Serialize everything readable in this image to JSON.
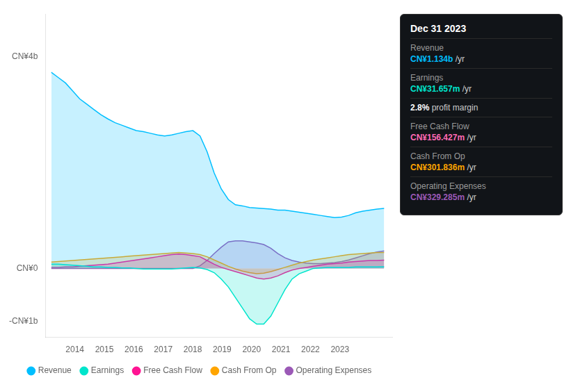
{
  "chart_data": {
    "type": "area",
    "x": [
      2013.2,
      2013.440426,
      2013.680851,
      2013.921277,
      2014.161702,
      2014.402128,
      2014.642553,
      2014.882979,
      2015.123404,
      2015.36383,
      2015.604255,
      2015.844681,
      2016.085106,
      2016.325532,
      2016.565957,
      2016.806383,
      2017.046809,
      2017.287234,
      2017.52766,
      2017.768085,
      2018.008511,
      2018.248936,
      2018.489362,
      2018.729787,
      2018.970213,
      2019.210638,
      2019.451064,
      2019.691489,
      2019.931915,
      2020.17234,
      2020.412766,
      2020.653191,
      2020.893617,
      2021.134043,
      2021.374468,
      2021.614894,
      2021.855319,
      2022.095745,
      2022.33617,
      2022.576596,
      2022.817021,
      2023.057447,
      2023.297872,
      2023.538298,
      2023.778723,
      2024.019149,
      2024.259574,
      2024.5
    ],
    "series": [
      {
        "name": "Revenue",
        "color": "#00bfff",
        "values": [
          3700000000.0,
          3600000000.0,
          3500000000.0,
          3350000000.0,
          3200000000.0,
          3100000000.0,
          3000000000.0,
          2900000000.0,
          2820000000.0,
          2750000000.0,
          2700000000.0,
          2650000000.0,
          2600000000.0,
          2580000000.0,
          2550000000.0,
          2520000000.0,
          2500000000.0,
          2520000000.0,
          2550000000.0,
          2580000000.0,
          2600000000.0,
          2500000000.0,
          2200000000.0,
          1800000000.0,
          1500000000.0,
          1300000000.0,
          1200000000.0,
          1180000000.0,
          1150000000.0,
          1140000000.0,
          1130000000.0,
          1120000000.0,
          1100000000.0,
          1100000000.0,
          1080000000.0,
          1060000000.0,
          1040000000.0,
          1020000000.0,
          1000000000.0,
          980000000.0,
          960000000.0,
          970000000.0,
          1000000000.0,
          1050000000.0,
          1080000000.0,
          1100000000.0,
          1120000000.0,
          1134000000.0
        ]
      },
      {
        "name": "Earnings",
        "color": "#00e5cc",
        "values": [
          80000000.0,
          80000000.0,
          70000000.0,
          60000000.0,
          50000000.0,
          40000000.0,
          30000000.0,
          30000000.0,
          20000000.0,
          20000000.0,
          10000000.0,
          10000000.0,
          0.0,
          -10000000.0,
          -10000000.0,
          -10000000.0,
          -10000000.0,
          -10000000.0,
          0.0,
          10000000.0,
          20000000.0,
          10000000.0,
          -20000000.0,
          -80000000.0,
          -200000000.0,
          -350000000.0,
          -550000000.0,
          -750000000.0,
          -950000000.0,
          -1050000000.0,
          -1050000000.0,
          -900000000.0,
          -650000000.0,
          -400000000.0,
          -200000000.0,
          -100000000.0,
          -50000000.0,
          0.0,
          10000000.0,
          20000000.0,
          20000000.0,
          20000000.0,
          20000000.0,
          30000000.0,
          30000000.0,
          30000000.0,
          30000000.0,
          31657000.0
        ]
      },
      {
        "name": "Free Cash Flow",
        "color": "#ff1493",
        "values": [
          20000000.0,
          20000000.0,
          30000000.0,
          30000000.0,
          40000000.0,
          50000000.0,
          60000000.0,
          70000000.0,
          80000000.0,
          100000000.0,
          120000000.0,
          140000000.0,
          160000000.0,
          180000000.0,
          200000000.0,
          220000000.0,
          240000000.0,
          260000000.0,
          270000000.0,
          260000000.0,
          240000000.0,
          220000000.0,
          150000000.0,
          80000000.0,
          20000000.0,
          -20000000.0,
          -60000000.0,
          -100000000.0,
          -140000000.0,
          -180000000.0,
          -200000000.0,
          -180000000.0,
          -140000000.0,
          -80000000.0,
          -30000000.0,
          0.0,
          20000000.0,
          40000000.0,
          60000000.0,
          80000000.0,
          90000000.0,
          100000000.0,
          120000000.0,
          130000000.0,
          140000000.0,
          150000000.0,
          150000000.0,
          156430000.0
        ]
      },
      {
        "name": "Cash From Op",
        "color": "#ffa500",
        "values": [
          120000000.0,
          130000000.0,
          140000000.0,
          150000000.0,
          160000000.0,
          170000000.0,
          180000000.0,
          190000000.0,
          200000000.0,
          210000000.0,
          220000000.0,
          230000000.0,
          240000000.0,
          250000000.0,
          260000000.0,
          270000000.0,
          280000000.0,
          290000000.0,
          300000000.0,
          290000000.0,
          280000000.0,
          260000000.0,
          220000000.0,
          160000000.0,
          100000000.0,
          40000000.0,
          -10000000.0,
          -50000000.0,
          -80000000.0,
          -100000000.0,
          -90000000.0,
          -60000000.0,
          -20000000.0,
          20000000.0,
          60000000.0,
          100000000.0,
          130000000.0,
          160000000.0,
          180000000.0,
          200000000.0,
          220000000.0,
          240000000.0,
          260000000.0,
          270000000.0,
          280000000.0,
          290000000.0,
          300000000.0,
          301840000.0
        ]
      },
      {
        "name": "Operating Expenses",
        "color": "#9b59b6",
        "values": [
          0.0,
          0.0,
          0.0,
          0.0,
          0.0,
          0.0,
          0.0,
          0.0,
          0.0,
          0.0,
          0.0,
          0.0,
          0.0,
          0.0,
          0.0,
          0.0,
          0.0,
          0.0,
          0.0,
          0.0,
          0.0,
          50000000.0,
          150000000.0,
          280000000.0,
          400000000.0,
          500000000.0,
          520000000.0,
          520000000.0,
          500000000.0,
          480000000.0,
          450000000.0,
          380000000.0,
          280000000.0,
          200000000.0,
          150000000.0,
          120000000.0,
          100000000.0,
          90000000.0,
          90000000.0,
          100000000.0,
          110000000.0,
          130000000.0,
          160000000.0,
          200000000.0,
          240000000.0,
          280000000.0,
          310000000.0,
          329290000.0
        ]
      }
    ],
    "xlim": [
      2013.0,
      2024.8
    ],
    "xticks": [
      2014,
      2015,
      2016,
      2017,
      2018,
      2019,
      2020,
      2021,
      2022,
      2023
    ],
    "ylim": [
      -1300000000.0,
      4800000000.0
    ],
    "yticks": [
      {
        "value": -1000000000,
        "label": "-CN¥1b"
      },
      {
        "value": 0,
        "label": "CN¥0"
      },
      {
        "value": 4000000000,
        "label": "CN¥4b"
      }
    ],
    "grid": false,
    "legend": "bottom",
    "annotations": [
      {
        "text": "Dec 31 2023"
      },
      {
        "label": "Revenue",
        "text": "CN¥1.134b",
        "suffix": " /yr",
        "color": "#00bfff"
      },
      {
        "label": "Earnings",
        "text": "CN¥31.657m",
        "suffix": " /yr",
        "color": "#00e5cc"
      },
      {
        "text": "2.8%",
        "suffix": " profit margin",
        "color": "#ffffff"
      },
      {
        "label": "Free Cash Flow",
        "text": "CN¥156.427m",
        "suffix": " /yr",
        "color": "#ff69b4"
      },
      {
        "label": "Cash From Op",
        "text": "CN¥301.836m",
        "suffix": " /yr",
        "color": "#ffa500"
      },
      {
        "label": "Operating Expenses",
        "text": "CN¥329.285m",
        "suffix": " /yr",
        "color": "#9b59b6"
      }
    ]
  }
}
